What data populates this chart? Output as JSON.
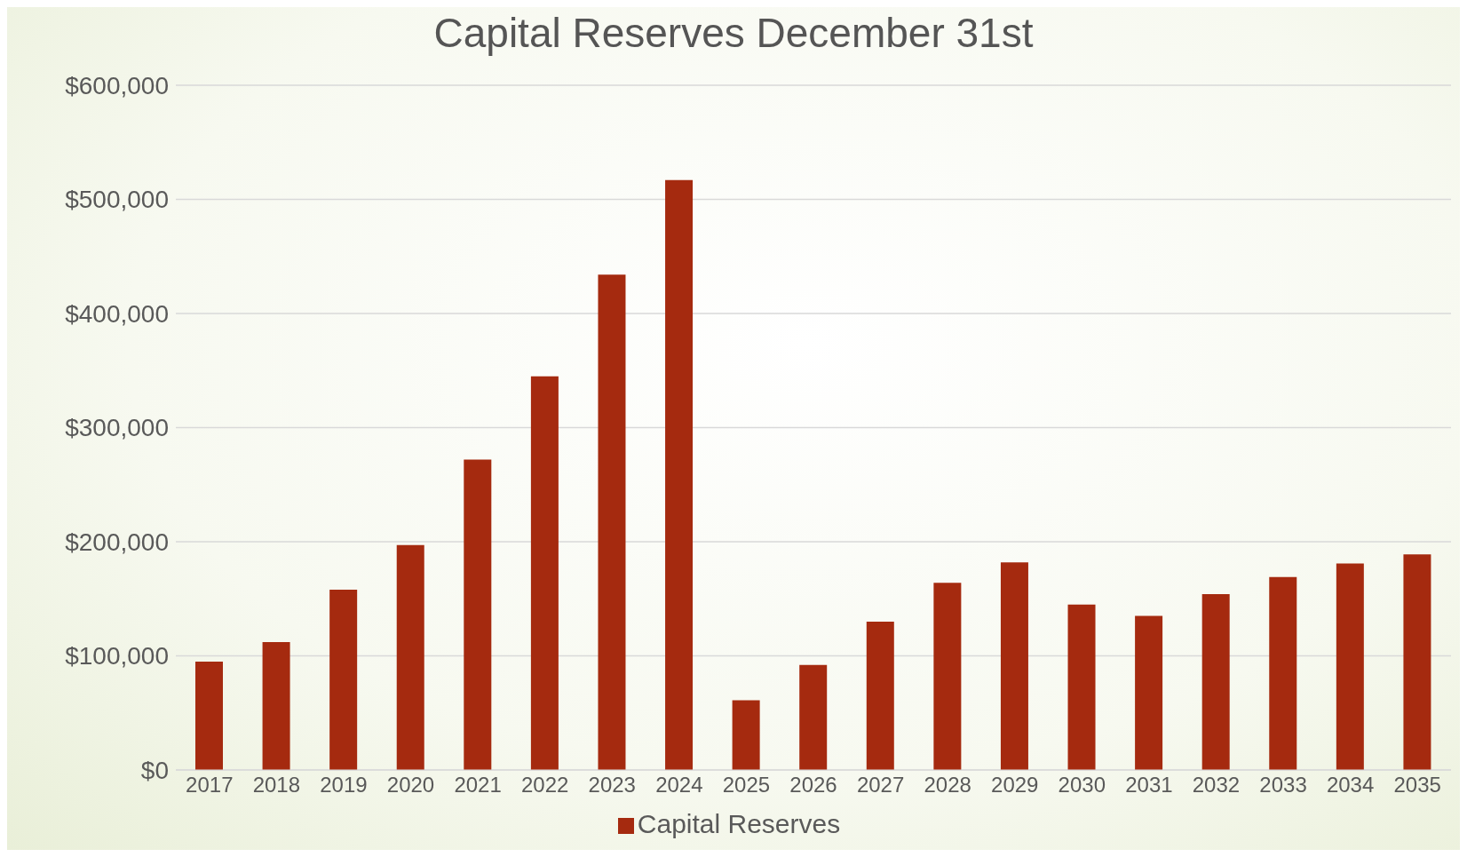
{
  "chart_data": {
    "type": "bar",
    "title": "Capital Reserves December 31st",
    "categories": [
      "2017",
      "2018",
      "2019",
      "2020",
      "2021",
      "2022",
      "2023",
      "2024",
      "2025",
      "2026",
      "2027",
      "2028",
      "2029",
      "2030",
      "2031",
      "2032",
      "2033",
      "2034",
      "2035"
    ],
    "series": [
      {
        "name": "Capital Reserves",
        "color": "#a52a0f",
        "values": [
          95000,
          112000,
          158000,
          197000,
          272000,
          345000,
          434000,
          517000,
          61000,
          92000,
          130000,
          164000,
          182000,
          145000,
          135000,
          154000,
          169000,
          181000,
          189000
        ]
      }
    ],
    "ylim": [
      0,
      600000
    ],
    "yticks": [
      {
        "value": 0,
        "label": "$0"
      },
      {
        "value": 100000,
        "label": "$100,000"
      },
      {
        "value": 200000,
        "label": "$200,000"
      },
      {
        "value": 300000,
        "label": "$300,000"
      },
      {
        "value": 400000,
        "label": "$400,000"
      },
      {
        "value": 500000,
        "label": "$500,000"
      },
      {
        "value": 600000,
        "label": "$600,000"
      }
    ],
    "grid": "y",
    "legend": "bottom"
  }
}
